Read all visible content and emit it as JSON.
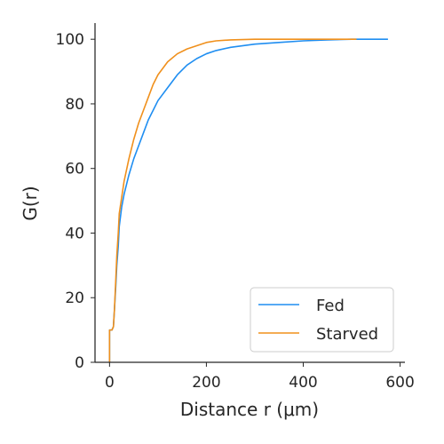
{
  "chart_data": {
    "type": "line",
    "xlabel": "Distance r (μm)",
    "ylabel": "G(r)",
    "xlim": [
      -30,
      610
    ],
    "ylim": [
      0,
      105
    ],
    "xticks": [
      0,
      200,
      400,
      600
    ],
    "yticks": [
      0,
      20,
      40,
      60,
      80,
      100
    ],
    "grid": false,
    "legend_position": "bottom-right",
    "series": [
      {
        "name": "Fed",
        "color": "#1f8ef1",
        "x": [
          0,
          0,
          5,
          8,
          10,
          13,
          15,
          18,
          20,
          25,
          30,
          40,
          50,
          60,
          70,
          80,
          90,
          100,
          120,
          140,
          160,
          180,
          200,
          220,
          250,
          300,
          350,
          400,
          450,
          500,
          575
        ],
        "y": [
          0,
          10,
          10,
          11,
          16,
          24,
          30,
          36,
          42,
          48,
          52,
          58,
          63,
          67,
          71,
          75,
          78,
          81,
          85,
          89,
          92,
          94,
          95.5,
          96.5,
          97.5,
          98.5,
          99,
          99.5,
          99.8,
          100,
          100
        ]
      },
      {
        "name": "Starved",
        "color": "#f0901c",
        "x": [
          0,
          0,
          5,
          8,
          10,
          13,
          15,
          18,
          20,
          25,
          30,
          40,
          50,
          60,
          70,
          80,
          90,
          100,
          120,
          140,
          160,
          180,
          200,
          220,
          250,
          300,
          350,
          400,
          450,
          510
        ],
        "y": [
          0,
          10,
          10,
          11,
          16,
          26,
          33,
          40,
          46,
          51,
          56,
          63,
          69,
          74,
          78,
          82,
          86,
          89,
          93,
          95.5,
          97,
          98,
          99,
          99.5,
          99.8,
          100,
          100,
          100,
          100,
          100
        ]
      }
    ]
  }
}
